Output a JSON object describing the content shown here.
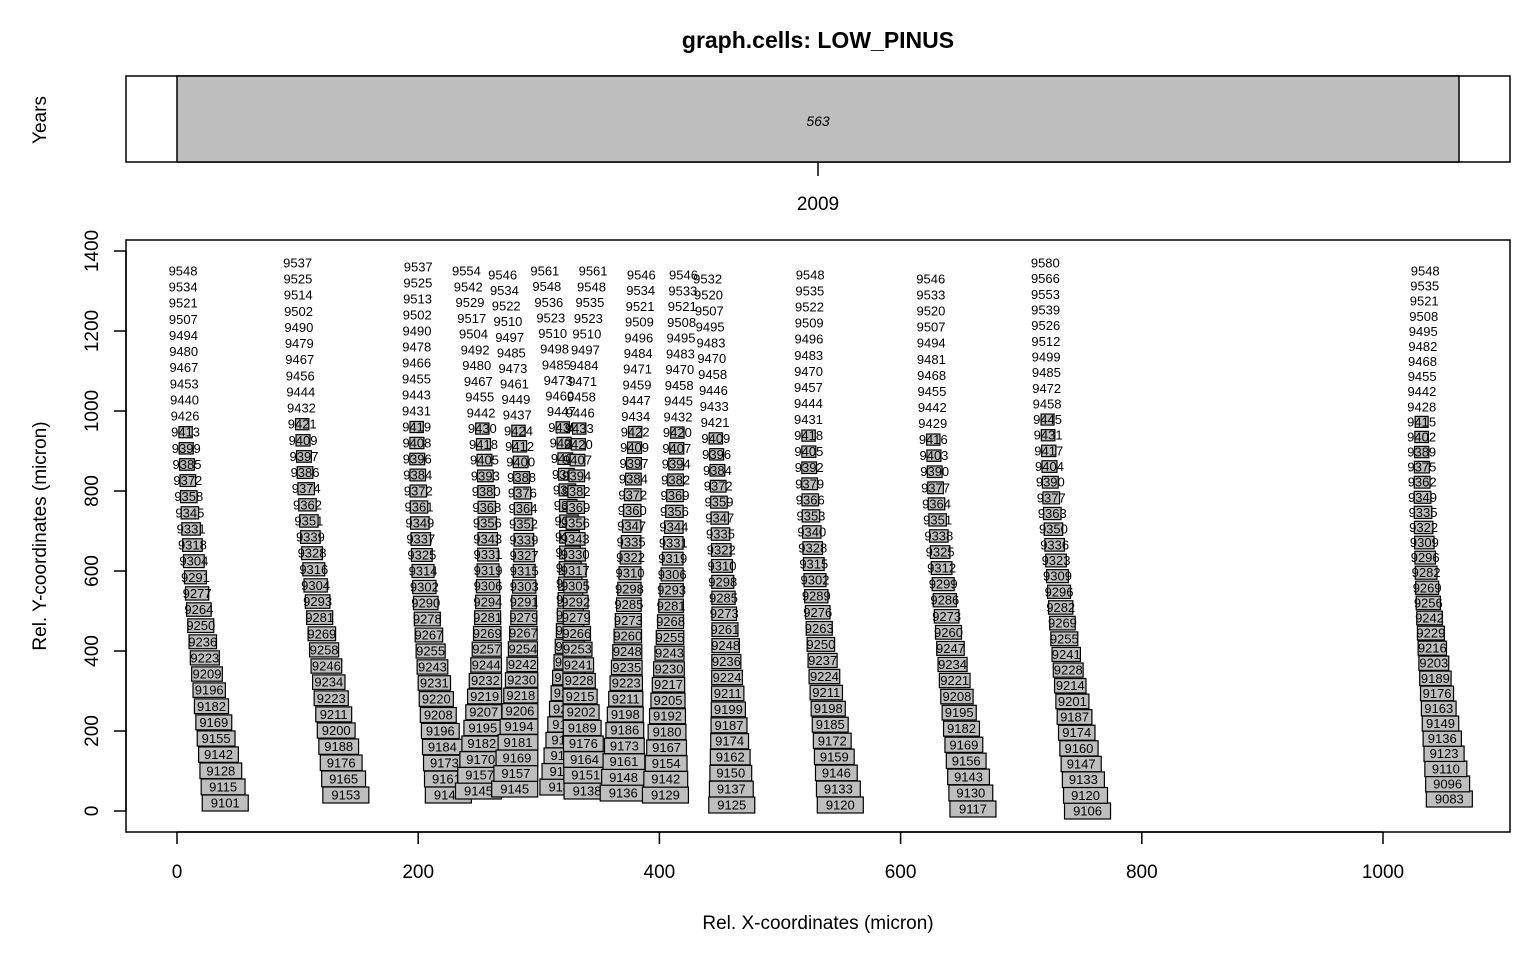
{
  "chart_data": [
    {
      "type": "bar",
      "title": "graph.cells: LOW_PINUS",
      "ylabel": "Years",
      "categories": [
        "2009"
      ],
      "ring_width_labels": [
        "563"
      ],
      "colors": {
        "ring_fill": "#bebebe",
        "outer_fill": "#ffffff"
      }
    },
    {
      "type": "scatter",
      "xlabel": "Rel. X-coordinates (micron)",
      "ylabel": "Rel. Y-coordinates (micron)",
      "xlim": [
        0,
        1060
      ],
      "ylim": [
        0,
        1400
      ],
      "xticks": [
        "0",
        "200",
        "400",
        "600",
        "800",
        "1000"
      ],
      "yticks": [
        "0",
        "200",
        "400",
        "600",
        "800",
        "1000",
        "1200",
        "1400"
      ],
      "grid": false,
      "colors": {
        "label_fill": "#bebebe",
        "label_border": "#000000"
      },
      "files": [
        {
          "top": [
            5,
            1350
          ],
          "bottom": [
            40,
            20
          ],
          "first": 9101,
          "last": 9548,
          "n": 34,
          "curve": -1
        },
        {
          "top": [
            100,
            1370
          ],
          "bottom": [
            140,
            40
          ],
          "first": 9153,
          "last": 9537,
          "n": 34,
          "curve": -1
        },
        {
          "top": [
            200,
            1360
          ],
          "bottom": [
            225,
            40
          ],
          "first": 9149,
          "last": 9537,
          "n": 34,
          "curve": -1
        },
        {
          "top": [
            240,
            1350
          ],
          "bottom": [
            250,
            50
          ],
          "first": 9145,
          "last": 9554,
          "n": 34,
          "curve": 1
        },
        {
          "top": [
            270,
            1340
          ],
          "bottom": [
            280,
            55
          ],
          "first": 9145,
          "last": 9546,
          "n": 34,
          "curve": 1
        },
        {
          "top": [
            305,
            1350
          ],
          "bottom": [
            320,
            60
          ],
          "first": 9144,
          "last": 9561,
          "n": 34,
          "curve": 1
        },
        {
          "top": [
            345,
            1350
          ],
          "bottom": [
            340,
            50
          ],
          "first": 9138,
          "last": 9561,
          "n": 34,
          "curve": -1
        },
        {
          "top": [
            385,
            1340
          ],
          "bottom": [
            370,
            45
          ],
          "first": 9136,
          "last": 9546,
          "n": 34,
          "curve": 0
        },
        {
          "top": [
            420,
            1340
          ],
          "bottom": [
            405,
            40
          ],
          "first": 9129,
          "last": 9546,
          "n": 34,
          "curve": 0
        },
        {
          "top": [
            440,
            1330
          ],
          "bottom": [
            460,
            15
          ],
          "first": 9125,
          "last": 9532,
          "n": 34,
          "curve": 0
        },
        {
          "top": [
            525,
            1340
          ],
          "bottom": [
            550,
            15
          ],
          "first": 9120,
          "last": 9548,
          "n": 34,
          "curve": -1
        },
        {
          "top": [
            625,
            1330
          ],
          "bottom": [
            660,
            5
          ],
          "first": 9117,
          "last": 9546,
          "n": 34,
          "curve": -1
        },
        {
          "top": [
            720,
            1370
          ],
          "bottom": [
            755,
            0
          ],
          "first": 9106,
          "last": 9580,
          "n": 36,
          "curve": -1
        },
        {
          "top": [
            1035,
            1350
          ],
          "bottom": [
            1055,
            30
          ],
          "first": 9083,
          "last": 9548,
          "n": 36,
          "curve": -1
        }
      ]
    }
  ]
}
